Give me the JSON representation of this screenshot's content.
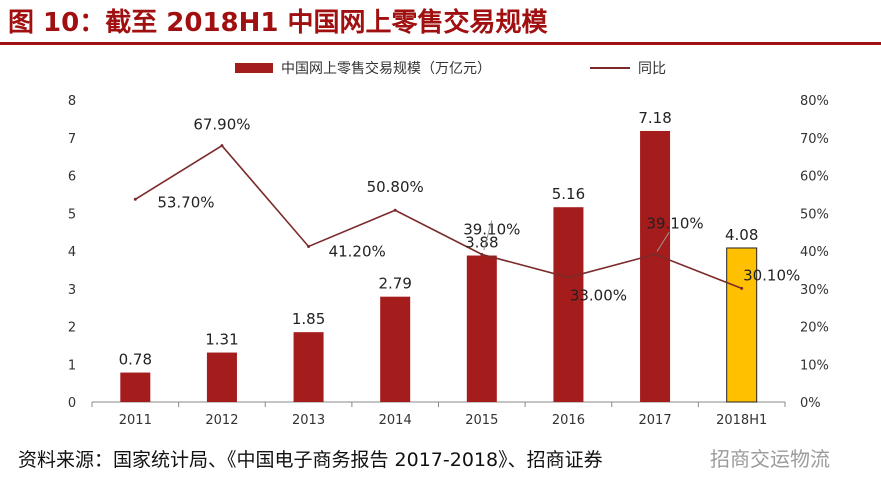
{
  "title": "图 10：截至 2018H1 中国网上零售交易规模",
  "source": "资料来源：国家统计局、《中国电子商务报告 2017-2018》、招商证券",
  "watermark": "招商交运物流",
  "chart_data": {
    "type": "bar",
    "categories": [
      "2011",
      "2012",
      "2013",
      "2014",
      "2015",
      "2016",
      "2017",
      "2018H1"
    ],
    "series": [
      {
        "name": "中国网上零售交易规模（万亿元）",
        "type": "bar",
        "axis": "left",
        "values": [
          0.78,
          1.31,
          1.85,
          2.79,
          3.88,
          5.16,
          7.18,
          4.08
        ],
        "labels": [
          "0.78",
          "1.31",
          "1.85",
          "2.79",
          "3.88",
          "5.16",
          "7.18",
          "4.08"
        ]
      },
      {
        "name": "同比",
        "type": "line",
        "axis": "right",
        "values": [
          53.7,
          67.9,
          41.2,
          50.8,
          39.1,
          33.0,
          39.1,
          30.1
        ],
        "labels": [
          "53.70%",
          "67.90%",
          "41.20%",
          "50.80%",
          "39.10%",
          "33.00%",
          "39.10%",
          "30.10%"
        ]
      }
    ],
    "left_axis": {
      "min": 0,
      "max": 8,
      "ticks": [
        "0",
        "1",
        "2",
        "3",
        "4",
        "5",
        "6",
        "7",
        "8"
      ]
    },
    "right_axis": {
      "min": 0,
      "max": 80,
      "ticks": [
        "0%",
        "10%",
        "20%",
        "30%",
        "40%",
        "50%",
        "60%",
        "70%",
        "80%"
      ]
    },
    "legend_position": "top-center",
    "highlight_category": "2018H1",
    "colors": {
      "bar": "#a51c1c",
      "bar_highlight": "#ffc000",
      "line": "#7b2a2a",
      "axis": "#888888",
      "title": "#a01010"
    }
  }
}
